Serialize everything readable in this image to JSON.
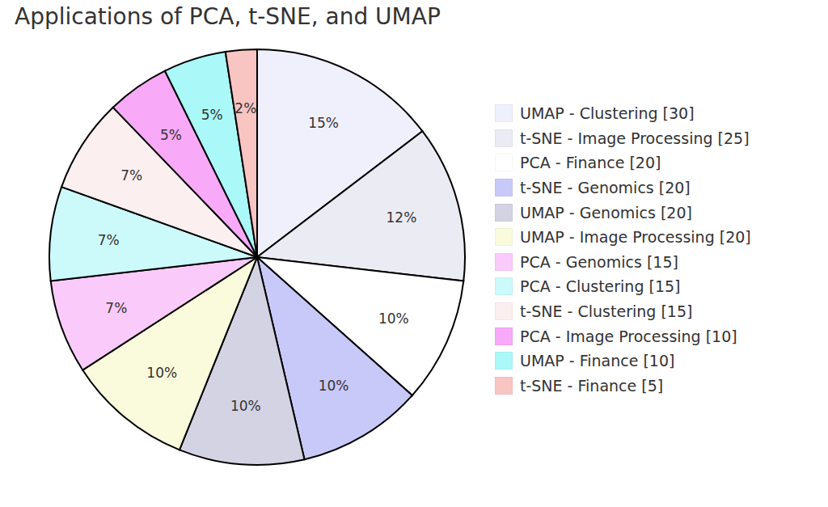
{
  "chart_data": {
    "type": "pie",
    "title": "Applications of PCA, t-SNE, and UMAP",
    "categories": [
      "UMAP - Clustering [30]",
      "t-SNE - Image Processing [25]",
      "PCA - Finance [20]",
      "t-SNE - Genomics [20]",
      "UMAP - Genomics [20]",
      "UMAP - Image Processing [20]",
      "PCA - Genomics [15]",
      "PCA - Clustering [15]",
      "t-SNE - Clustering [15]",
      "PCA - Image Processing [10]",
      "UMAP - Finance [10]",
      "t-SNE - Finance [5]"
    ],
    "values": [
      30,
      25,
      20,
      20,
      20,
      20,
      15,
      15,
      15,
      10,
      10,
      5
    ],
    "percent_labels": [
      "15%",
      "12%",
      "10%",
      "10%",
      "10%",
      "10%",
      "7%",
      "7%",
      "7%",
      "5%",
      "5%",
      "2%"
    ],
    "colors": [
      "#f0f0fd",
      "#ebebf3",
      "#ffffff",
      "#c9c9f9",
      "#d3d3e3",
      "#fafadc",
      "#facbfa",
      "#ccfafa",
      "#fcefef",
      "#f8a9f8",
      "#aaf8f8",
      "#f8c5c2"
    ],
    "legend": "right"
  }
}
